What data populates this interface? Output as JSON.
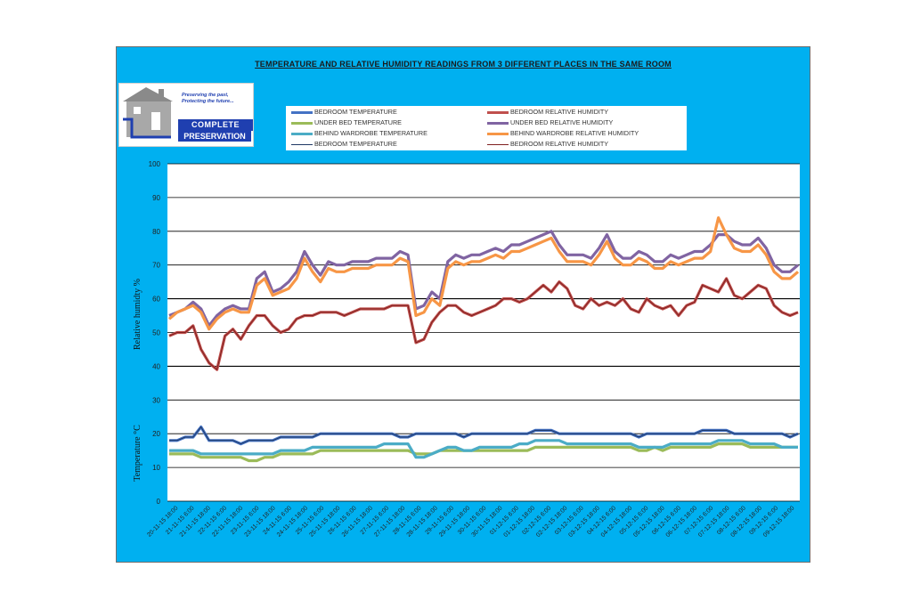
{
  "chart_data": {
    "type": "line",
    "title": "TEMPERATURE  AND  RELATIVE  HUMIDITY  READINGS  FROM  3  DIFFERENT  PLACES  IN  THE  SAME  ROOM",
    "ylabel_upper": "Relative humidty %",
    "ylabel_lower": "Temperature °C",
    "ylim": [
      0,
      100
    ],
    "yticks": [
      0,
      10,
      20,
      30,
      40,
      50,
      60,
      70,
      80,
      90,
      100
    ],
    "xlabel": "",
    "x_tick_labels": [
      "20-11-15 18:00",
      "21-11-15 6:00",
      "21-11-15 18:00",
      "22-11-15 6:00",
      "22-11-15 18:00",
      "23-11-15 6:00",
      "23-11-15 18:00",
      "24-11-15 6:00",
      "24-11-15 18:00",
      "25-11-15 6:00",
      "25-11-15 18:00",
      "26-11-15 6:00",
      "26-11-15 18:00",
      "27-11-15 6:00",
      "27-11-15 18:00",
      "28-11-15 6:00",
      "28-11-15 18:00",
      "29-11-15 6:00",
      "29-11-15 18:00",
      "30-11-15 6:00",
      "30-11-15 18:00",
      "01-12-15 6:00",
      "01-12-15 18:00",
      "02-12-15 6:00",
      "02-12-15 18:00",
      "03-12-15 6:00",
      "03-12-15 18:00",
      "04-12-15 6:00",
      "04-12-15 18:00",
      "05-12-15 6:00",
      "05-12-15 18:00",
      "06-12-15 6:00",
      "06-12-15 18:00",
      "07-12-15 6:00",
      "07-12-15 18:00",
      "08-12-15 6:00",
      "08-12-15 18:00",
      "09-12-15 6:00",
      "09-12-15 18:00"
    ],
    "legend_position": "top",
    "series": [
      {
        "name": "BEDROOM TEMPERATURE",
        "color": "#4472c4",
        "width": 3.2,
        "values": [
          18,
          18,
          19,
          19,
          22,
          18,
          18,
          18,
          18,
          17,
          18,
          18,
          18,
          18,
          19,
          19,
          19,
          19,
          19,
          20,
          20,
          20,
          20,
          20,
          20,
          20,
          20,
          20,
          20,
          19,
          19,
          20,
          20,
          20,
          20,
          20,
          20,
          19,
          20,
          20,
          20,
          20,
          20,
          20,
          20,
          20,
          21,
          21,
          21,
          20,
          20,
          20,
          20,
          20,
          20,
          20,
          20,
          20,
          20,
          19,
          20,
          20,
          20,
          20,
          20,
          20,
          20,
          21,
          21,
          21,
          21,
          20,
          20,
          20,
          20,
          20,
          20,
          20,
          19,
          20
        ]
      },
      {
        "name": "BEDROOM RELATIVE HUMIDITY",
        "color": "#c0504d",
        "width": 3.2,
        "values": [
          49,
          50,
          50,
          52,
          45,
          41,
          39,
          49,
          51,
          48,
          52,
          55,
          55,
          52,
          50,
          51,
          54,
          55,
          55,
          56,
          56,
          56,
          55,
          56,
          57,
          57,
          57,
          57,
          58,
          58,
          58,
          47,
          48,
          53,
          56,
          58,
          58,
          56,
          55,
          56,
          57,
          58,
          60,
          60,
          59,
          60,
          62,
          64,
          62,
          65,
          63,
          58,
          57,
          60,
          58,
          59,
          58,
          60,
          57,
          56,
          60,
          58,
          57,
          58,
          55,
          58,
          59,
          64,
          63,
          62,
          66,
          61,
          60,
          62,
          64,
          63,
          58,
          56,
          55,
          56
        ]
      },
      {
        "name": "UNDER BED TEMPERATURE",
        "color": "#9bbb59",
        "width": 3.2,
        "values": [
          14,
          14,
          14,
          14,
          13,
          13,
          13,
          13,
          13,
          13,
          12,
          12,
          13,
          13,
          14,
          14,
          14,
          14,
          14,
          15,
          15,
          15,
          15,
          15,
          15,
          15,
          15,
          15,
          15,
          15,
          15,
          14,
          14,
          14,
          15,
          15,
          15,
          15,
          15,
          15,
          15,
          15,
          15,
          15,
          15,
          15,
          16,
          16,
          16,
          16,
          16,
          16,
          16,
          16,
          16,
          16,
          16,
          16,
          16,
          15,
          15,
          16,
          15,
          16,
          16,
          16,
          16,
          16,
          16,
          17,
          17,
          17,
          17,
          16,
          16,
          16,
          16,
          16,
          16,
          16
        ]
      },
      {
        "name": "UNDER BED RELATIVE HUMIDITY",
        "color": "#8064a2",
        "width": 3.2,
        "values": [
          55,
          56,
          57,
          59,
          57,
          52,
          55,
          57,
          58,
          57,
          57,
          66,
          68,
          62,
          63,
          65,
          68,
          74,
          70,
          67,
          71,
          70,
          70,
          71,
          71,
          71,
          72,
          72,
          72,
          74,
          73,
          57,
          58,
          62,
          60,
          71,
          73,
          72,
          73,
          73,
          74,
          75,
          74,
          76,
          76,
          77,
          78,
          79,
          80,
          76,
          73,
          73,
          73,
          72,
          75,
          79,
          74,
          72,
          72,
          74,
          73,
          71,
          71,
          73,
          72,
          73,
          74,
          74,
          76,
          79,
          79,
          77,
          76,
          76,
          78,
          75,
          70,
          68,
          68,
          70
        ]
      },
      {
        "name": "BEHIND WARDROBE TEMPERATURE",
        "color": "#4bacc6",
        "width": 3.2,
        "values": [
          15,
          15,
          15,
          15,
          14,
          14,
          14,
          14,
          14,
          14,
          14,
          14,
          14,
          14,
          15,
          15,
          15,
          15,
          16,
          16,
          16,
          16,
          16,
          16,
          16,
          16,
          16,
          17,
          17,
          17,
          17,
          13,
          13,
          14,
          15,
          16,
          16,
          15,
          15,
          16,
          16,
          16,
          16,
          16,
          17,
          17,
          18,
          18,
          18,
          18,
          17,
          17,
          17,
          17,
          17,
          17,
          17,
          17,
          17,
          16,
          16,
          16,
          16,
          17,
          17,
          17,
          17,
          17,
          17,
          18,
          18,
          18,
          18,
          17,
          17,
          17,
          17,
          16,
          16,
          16
        ]
      },
      {
        "name": "BEHIND WARDROBE RELATIVE HUMIDITY",
        "color": "#f79646",
        "width": 3.2,
        "values": [
          54,
          56,
          57,
          58,
          56,
          51,
          54,
          56,
          57,
          56,
          56,
          64,
          66,
          61,
          62,
          63,
          66,
          72,
          68,
          65,
          69,
          68,
          68,
          69,
          69,
          69,
          70,
          70,
          70,
          72,
          71,
          55,
          56,
          60,
          58,
          69,
          71,
          70,
          71,
          71,
          72,
          73,
          72,
          74,
          74,
          75,
          76,
          77,
          78,
          74,
          71,
          71,
          71,
          70,
          73,
          77,
          72,
          70,
          70,
          72,
          71,
          69,
          69,
          71,
          70,
          71,
          72,
          72,
          74,
          84,
          79,
          75,
          74,
          74,
          76,
          73,
          68,
          66,
          66,
          68
        ]
      },
      {
        "name": "BEDROOM TEMPERATURE",
        "color": "#1f3864",
        "width": 1,
        "values": [
          18,
          18,
          19,
          19,
          22,
          18,
          18,
          18,
          18,
          17,
          18,
          18,
          18,
          18,
          19,
          19,
          19,
          19,
          19,
          20,
          20,
          20,
          20,
          20,
          20,
          20,
          20,
          20,
          20,
          19,
          19,
          20,
          20,
          20,
          20,
          20,
          20,
          19,
          20,
          20,
          20,
          20,
          20,
          20,
          20,
          20,
          21,
          21,
          21,
          20,
          20,
          20,
          20,
          20,
          20,
          20,
          20,
          20,
          20,
          19,
          20,
          20,
          20,
          20,
          20,
          20,
          20,
          21,
          21,
          21,
          21,
          20,
          20,
          20,
          20,
          20,
          20,
          20,
          19,
          20
        ]
      },
      {
        "name": "BEDROOM RELATIVE HUMIDITY",
        "color": "#7f2020",
        "width": 1,
        "values": [
          49,
          50,
          50,
          52,
          45,
          41,
          39,
          49,
          51,
          48,
          52,
          55,
          55,
          52,
          50,
          51,
          54,
          55,
          55,
          56,
          56,
          56,
          55,
          56,
          57,
          57,
          57,
          57,
          58,
          58,
          58,
          47,
          48,
          53,
          56,
          58,
          58,
          56,
          55,
          56,
          57,
          58,
          60,
          60,
          59,
          60,
          62,
          64,
          62,
          65,
          63,
          58,
          57,
          60,
          58,
          59,
          58,
          60,
          57,
          56,
          60,
          58,
          57,
          58,
          55,
          58,
          59,
          64,
          63,
          62,
          66,
          61,
          60,
          62,
          64,
          63,
          58,
          56,
          55,
          56
        ]
      }
    ]
  },
  "logo": {
    "tagline1": "Preserving the past,",
    "tagline2": "Protecting the future...",
    "brand1": "COMPLETE",
    "brand2": "PRESERVATION"
  }
}
